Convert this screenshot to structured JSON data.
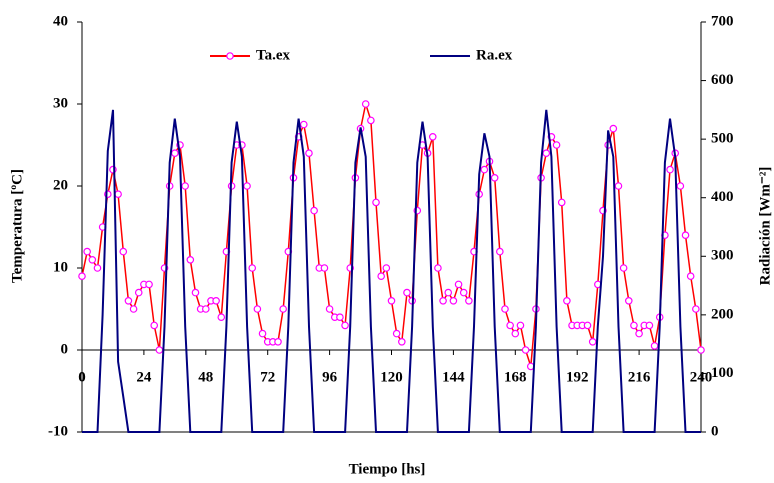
{
  "chart_data": {
    "type": "line",
    "x_label": "Tiempo [hs]",
    "y_label": "Temperatura [ºC]",
    "y2_label": "Radiación [Wm⁻²]",
    "x": [
      0,
      2,
      4,
      6,
      8,
      10,
      12,
      14,
      16,
      18,
      20,
      22,
      24,
      26,
      28,
      30,
      32,
      34,
      36,
      38,
      40,
      42,
      44,
      46,
      48,
      50,
      52,
      54,
      56,
      58,
      60,
      62,
      64,
      66,
      68,
      70,
      72,
      74,
      76,
      78,
      80,
      82,
      84,
      86,
      88,
      90,
      92,
      94,
      96,
      98,
      100,
      102,
      104,
      106,
      108,
      110,
      112,
      114,
      116,
      118,
      120,
      122,
      124,
      126,
      128,
      130,
      132,
      134,
      136,
      138,
      140,
      142,
      144,
      146,
      148,
      150,
      152,
      154,
      156,
      158,
      160,
      162,
      164,
      166,
      168,
      170,
      172,
      174,
      176,
      178,
      180,
      182,
      184,
      186,
      188,
      190,
      192,
      194,
      196,
      198,
      200,
      202,
      204,
      206,
      208,
      210,
      212,
      214,
      216,
      218,
      220,
      222,
      224,
      226,
      228,
      230,
      232,
      234,
      236,
      238,
      240
    ],
    "series": [
      {
        "name": "Ta.ex",
        "color": "#ff0000",
        "marker_color": "#ff00ff",
        "axis": "y",
        "values": [
          9,
          12,
          11,
          10,
          15,
          19,
          22,
          19,
          12,
          6,
          5,
          7,
          8,
          8,
          3,
          0,
          10,
          20,
          24,
          25,
          20,
          11,
          7,
          5,
          5,
          6,
          6,
          4,
          12,
          20,
          25,
          25,
          20,
          10,
          5,
          2,
          1,
          1,
          1,
          5,
          12,
          21,
          26,
          27.5,
          24,
          17,
          10,
          10,
          5,
          4,
          4,
          3,
          10,
          21,
          27,
          30,
          28,
          18,
          9,
          10,
          6,
          2,
          1,
          7,
          6,
          17,
          25,
          24,
          26,
          10,
          6,
          7,
          6,
          8,
          7,
          6,
          12,
          19,
          22,
          23,
          21,
          12,
          5,
          3,
          2,
          3,
          0,
          -2,
          5,
          21,
          24,
          26,
          25,
          18,
          6,
          3,
          3,
          3,
          3,
          1,
          8,
          17,
          25,
          27,
          20,
          10,
          6,
          3,
          2,
          3,
          3,
          0.5,
          4,
          14,
          22,
          24,
          20,
          14,
          9,
          5,
          0
        ]
      },
      {
        "name": "Ra.ex",
        "color": "#000080",
        "axis": "y2",
        "values": [
          0,
          0,
          0,
          0,
          200,
          480,
          550,
          120,
          60,
          0,
          0,
          0,
          0,
          0,
          0,
          0,
          180,
          460,
          535,
          470,
          180,
          0,
          0,
          0,
          0,
          0,
          0,
          0,
          180,
          460,
          530,
          470,
          180,
          0,
          0,
          0,
          0,
          0,
          0,
          0,
          180,
          460,
          535,
          470,
          180,
          0,
          0,
          0,
          0,
          0,
          0,
          0,
          180,
          460,
          520,
          470,
          180,
          0,
          0,
          0,
          0,
          0,
          0,
          0,
          180,
          460,
          530,
          470,
          180,
          0,
          0,
          0,
          0,
          0,
          0,
          0,
          180,
          440,
          510,
          470,
          180,
          0,
          0,
          0,
          0,
          0,
          0,
          0,
          180,
          460,
          550,
          470,
          180,
          0,
          0,
          0,
          0,
          0,
          0,
          0,
          180,
          300,
          515,
          470,
          180,
          0,
          0,
          0,
          0,
          0,
          0,
          0,
          180,
          460,
          535,
          470,
          180,
          0,
          0,
          0,
          0
        ]
      }
    ],
    "xlim": [
      0,
      240
    ],
    "xticks": [
      0,
      24,
      48,
      72,
      96,
      120,
      144,
      168,
      192,
      216,
      240
    ],
    "ylim": [
      -10,
      40
    ],
    "yticks": [
      -10,
      0,
      10,
      20,
      30,
      40
    ],
    "y2lim": [
      0,
      700
    ],
    "y2ticks": [
      0,
      100,
      200,
      300,
      400,
      500,
      600,
      700
    ]
  }
}
